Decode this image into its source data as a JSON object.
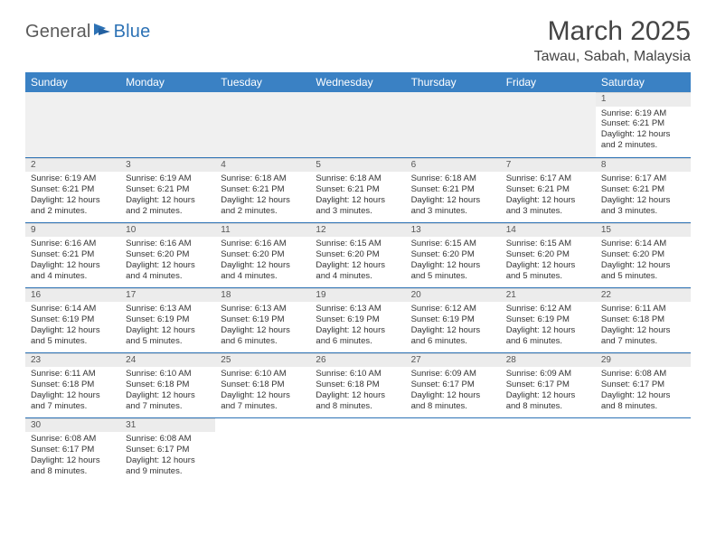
{
  "logo": {
    "part1": "General",
    "part2": "Blue"
  },
  "title": "March 2025",
  "location": "Tawau, Sabah, Malaysia",
  "colors": {
    "header_bg": "#3a81c4",
    "header_fg": "#ffffff",
    "row_border": "#2d72b5",
    "daynum_bg": "#ececec",
    "logo_gray": "#5a5a5a",
    "logo_blue": "#2d72b5"
  },
  "day_headers": [
    "Sunday",
    "Monday",
    "Tuesday",
    "Wednesday",
    "Thursday",
    "Friday",
    "Saturday"
  ],
  "weeks": [
    [
      null,
      null,
      null,
      null,
      null,
      null,
      {
        "n": "1",
        "sr": "6:19 AM",
        "ss": "6:21 PM",
        "dl": "12 hours and 2 minutes."
      }
    ],
    [
      {
        "n": "2",
        "sr": "6:19 AM",
        "ss": "6:21 PM",
        "dl": "12 hours and 2 minutes."
      },
      {
        "n": "3",
        "sr": "6:19 AM",
        "ss": "6:21 PM",
        "dl": "12 hours and 2 minutes."
      },
      {
        "n": "4",
        "sr": "6:18 AM",
        "ss": "6:21 PM",
        "dl": "12 hours and 2 minutes."
      },
      {
        "n": "5",
        "sr": "6:18 AM",
        "ss": "6:21 PM",
        "dl": "12 hours and 3 minutes."
      },
      {
        "n": "6",
        "sr": "6:18 AM",
        "ss": "6:21 PM",
        "dl": "12 hours and 3 minutes."
      },
      {
        "n": "7",
        "sr": "6:17 AM",
        "ss": "6:21 PM",
        "dl": "12 hours and 3 minutes."
      },
      {
        "n": "8",
        "sr": "6:17 AM",
        "ss": "6:21 PM",
        "dl": "12 hours and 3 minutes."
      }
    ],
    [
      {
        "n": "9",
        "sr": "6:16 AM",
        "ss": "6:21 PM",
        "dl": "12 hours and 4 minutes."
      },
      {
        "n": "10",
        "sr": "6:16 AM",
        "ss": "6:20 PM",
        "dl": "12 hours and 4 minutes."
      },
      {
        "n": "11",
        "sr": "6:16 AM",
        "ss": "6:20 PM",
        "dl": "12 hours and 4 minutes."
      },
      {
        "n": "12",
        "sr": "6:15 AM",
        "ss": "6:20 PM",
        "dl": "12 hours and 4 minutes."
      },
      {
        "n": "13",
        "sr": "6:15 AM",
        "ss": "6:20 PM",
        "dl": "12 hours and 5 minutes."
      },
      {
        "n": "14",
        "sr": "6:15 AM",
        "ss": "6:20 PM",
        "dl": "12 hours and 5 minutes."
      },
      {
        "n": "15",
        "sr": "6:14 AM",
        "ss": "6:20 PM",
        "dl": "12 hours and 5 minutes."
      }
    ],
    [
      {
        "n": "16",
        "sr": "6:14 AM",
        "ss": "6:19 PM",
        "dl": "12 hours and 5 minutes."
      },
      {
        "n": "17",
        "sr": "6:13 AM",
        "ss": "6:19 PM",
        "dl": "12 hours and 5 minutes."
      },
      {
        "n": "18",
        "sr": "6:13 AM",
        "ss": "6:19 PM",
        "dl": "12 hours and 6 minutes."
      },
      {
        "n": "19",
        "sr": "6:13 AM",
        "ss": "6:19 PM",
        "dl": "12 hours and 6 minutes."
      },
      {
        "n": "20",
        "sr": "6:12 AM",
        "ss": "6:19 PM",
        "dl": "12 hours and 6 minutes."
      },
      {
        "n": "21",
        "sr": "6:12 AM",
        "ss": "6:19 PM",
        "dl": "12 hours and 6 minutes."
      },
      {
        "n": "22",
        "sr": "6:11 AM",
        "ss": "6:18 PM",
        "dl": "12 hours and 7 minutes."
      }
    ],
    [
      {
        "n": "23",
        "sr": "6:11 AM",
        "ss": "6:18 PM",
        "dl": "12 hours and 7 minutes."
      },
      {
        "n": "24",
        "sr": "6:10 AM",
        "ss": "6:18 PM",
        "dl": "12 hours and 7 minutes."
      },
      {
        "n": "25",
        "sr": "6:10 AM",
        "ss": "6:18 PM",
        "dl": "12 hours and 7 minutes."
      },
      {
        "n": "26",
        "sr": "6:10 AM",
        "ss": "6:18 PM",
        "dl": "12 hours and 8 minutes."
      },
      {
        "n": "27",
        "sr": "6:09 AM",
        "ss": "6:17 PM",
        "dl": "12 hours and 8 minutes."
      },
      {
        "n": "28",
        "sr": "6:09 AM",
        "ss": "6:17 PM",
        "dl": "12 hours and 8 minutes."
      },
      {
        "n": "29",
        "sr": "6:08 AM",
        "ss": "6:17 PM",
        "dl": "12 hours and 8 minutes."
      }
    ],
    [
      {
        "n": "30",
        "sr": "6:08 AM",
        "ss": "6:17 PM",
        "dl": "12 hours and 8 minutes."
      },
      {
        "n": "31",
        "sr": "6:08 AM",
        "ss": "6:17 PM",
        "dl": "12 hours and 9 minutes."
      },
      null,
      null,
      null,
      null,
      null
    ]
  ],
  "labels": {
    "sunrise": "Sunrise:",
    "sunset": "Sunset:",
    "daylight": "Daylight:"
  }
}
